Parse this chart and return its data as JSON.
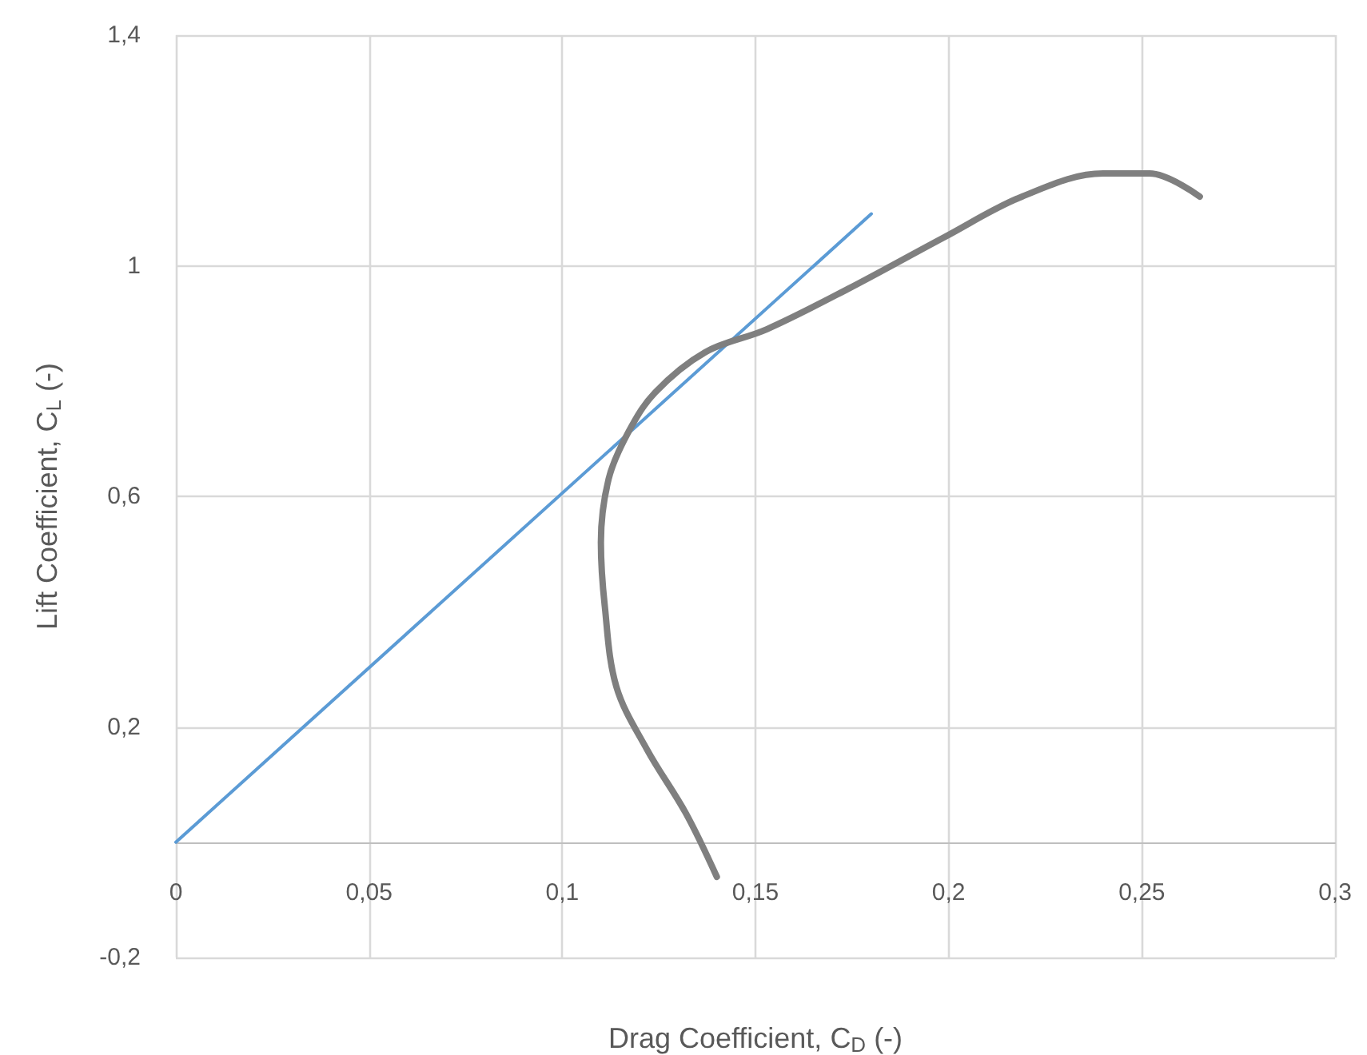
{
  "chart_data": {
    "type": "line",
    "xlabel": "Drag Coefficient, C$_{D}$ (-)",
    "ylabel": "Lift Coefficient, C$_{L}$ (-)",
    "series": [
      {
        "color": "#5b9bd5",
        "x": [
          0,
          0.18
        ],
        "values": [
          0,
          1.09
        ]
      },
      {
        "color": "#7f7f7f",
        "x": [
          0.14,
          0.132,
          0.122,
          0.114,
          0.111,
          0.11,
          0.112,
          0.117,
          0.124,
          0.137,
          0.153,
          0.174,
          0.199,
          0.219,
          0.24,
          0.252,
          0.265
        ],
        "values": [
          -0.06,
          0.05,
          0.16,
          0.27,
          0.41,
          0.52,
          0.63,
          0.71,
          0.78,
          0.85,
          0.89,
          0.96,
          1.05,
          1.12,
          1.16,
          1.16,
          1.12
        ]
      }
    ],
    "xlim": [
      0,
      0.3
    ],
    "xticks": [
      {
        "value": 0,
        "label": "0"
      },
      {
        "value": 0.05,
        "label": "0,05"
      },
      {
        "value": 0.1,
        "label": "0,1"
      },
      {
        "value": 0.15,
        "label": "0,15"
      },
      {
        "value": 0.2,
        "label": "0,2"
      },
      {
        "value": 0.25,
        "label": "0,25"
      },
      {
        "value": 0.3,
        "label": "0,3"
      }
    ],
    "ylim": [
      -0.2,
      1.4
    ],
    "yticks": [
      {
        "value": -0.2,
        "label": "-0,2"
      },
      {
        "value": 0.2,
        "label": "0,2"
      },
      {
        "value": 0.6,
        "label": "0,6"
      },
      {
        "value": 1,
        "label": "1"
      },
      {
        "value": 1.4,
        "label": "1,4"
      }
    ],
    "grid": true,
    "marker": "none",
    "line_style": "solid"
  }
}
